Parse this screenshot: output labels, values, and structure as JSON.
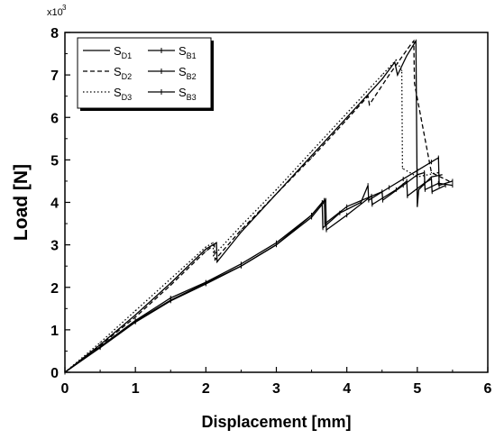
{
  "chart_data": {
    "type": "line",
    "xlabel": "Displacement [mm]",
    "ylabel": "Load [N]",
    "y_multiplier_label": {
      "base": "x10",
      "exp": "3"
    },
    "xlim": [
      0,
      6
    ],
    "ylim": [
      0,
      8
    ],
    "x_ticks": [
      0,
      1,
      2,
      3,
      4,
      5,
      6
    ],
    "y_ticks": [
      0,
      1,
      2,
      3,
      4,
      5,
      6,
      7,
      8
    ],
    "grid": false,
    "legend_position": "top-left",
    "series": [
      {
        "name": "S",
        "sub": "D1",
        "dash": "",
        "marker": "none",
        "x": [
          0,
          0.5,
          1.0,
          1.5,
          2.0,
          2.15,
          2.16,
          2.5,
          3.0,
          3.5,
          4.0,
          4.5,
          4.68,
          4.72,
          4.85,
          4.98,
          5.0,
          5.02,
          5.2,
          5.35
        ],
        "y": [
          0,
          0.65,
          1.35,
          2.1,
          2.9,
          3.05,
          2.6,
          3.3,
          4.2,
          5.1,
          6.0,
          6.9,
          7.3,
          7.0,
          7.45,
          7.8,
          3.9,
          4.3,
          4.6,
          4.65
        ]
      },
      {
        "name": "S",
        "sub": "D2",
        "dash": "5,3",
        "marker": "none",
        "x": [
          0,
          0.5,
          1.0,
          1.5,
          2.0,
          2.12,
          2.13,
          2.5,
          3.0,
          3.5,
          4.0,
          4.3,
          4.32,
          4.6,
          4.9,
          4.95,
          4.96,
          5.2,
          5.45
        ],
        "y": [
          0,
          0.63,
          1.3,
          2.05,
          2.85,
          3.0,
          2.65,
          3.35,
          4.2,
          5.05,
          5.95,
          6.5,
          6.3,
          7.0,
          7.7,
          7.8,
          6.8,
          4.7,
          4.5
        ]
      },
      {
        "name": "S",
        "sub": "D3",
        "dash": "1.5,2.5",
        "marker": "none",
        "x": [
          0,
          0.5,
          1.0,
          1.5,
          2.0,
          2.1,
          2.11,
          2.5,
          3.0,
          3.5,
          4.0,
          4.5,
          4.7,
          4.78,
          4.79,
          5.0,
          5.3
        ],
        "y": [
          0,
          0.7,
          1.45,
          2.2,
          2.95,
          3.05,
          2.75,
          3.45,
          4.3,
          5.2,
          6.1,
          7.0,
          7.35,
          7.1,
          4.8,
          4.6,
          4.7
        ]
      },
      {
        "name": "S",
        "sub": "B1",
        "dash": "",
        "marker": "tick",
        "x": [
          0,
          0.5,
          1.0,
          1.5,
          2.0,
          2.5,
          3.0,
          3.5,
          3.65,
          3.66,
          3.9,
          4.2,
          4.3,
          4.31,
          4.6,
          4.8,
          5.0,
          5.2,
          5.3,
          5.31,
          5.5
        ],
        "y": [
          0,
          0.6,
          1.2,
          1.7,
          2.1,
          2.5,
          3.0,
          3.7,
          4.0,
          3.4,
          3.75,
          4.0,
          4.4,
          4.05,
          4.35,
          4.55,
          4.75,
          4.95,
          5.05,
          4.4,
          4.5
        ]
      },
      {
        "name": "S",
        "sub": "B2",
        "dash": "",
        "marker": "tick",
        "x": [
          0,
          0.5,
          1.0,
          1.5,
          2.0,
          2.5,
          3.0,
          3.5,
          3.7,
          3.71,
          4.0,
          4.35,
          4.36,
          4.7,
          4.85,
          4.86,
          5.1,
          5.2,
          5.21,
          5.4
        ],
        "y": [
          0,
          0.58,
          1.18,
          1.68,
          2.08,
          2.5,
          3.0,
          3.65,
          4.05,
          3.35,
          3.7,
          4.15,
          3.95,
          4.3,
          4.5,
          4.15,
          4.45,
          4.55,
          4.25,
          4.4
        ]
      },
      {
        "name": "S",
        "sub": "B3",
        "dash": "",
        "marker": "tick",
        "x": [
          0,
          0.5,
          1.0,
          1.5,
          2.0,
          2.5,
          3.0,
          3.5,
          3.68,
          3.69,
          4.0,
          4.5,
          4.51,
          4.8,
          5.0,
          5.1,
          5.11,
          5.3,
          5.5
        ],
        "y": [
          0,
          0.6,
          1.22,
          1.75,
          2.12,
          2.55,
          3.05,
          3.7,
          4.05,
          3.5,
          3.9,
          4.25,
          4.05,
          4.4,
          4.65,
          4.7,
          4.3,
          4.45,
          4.4
        ]
      }
    ]
  }
}
